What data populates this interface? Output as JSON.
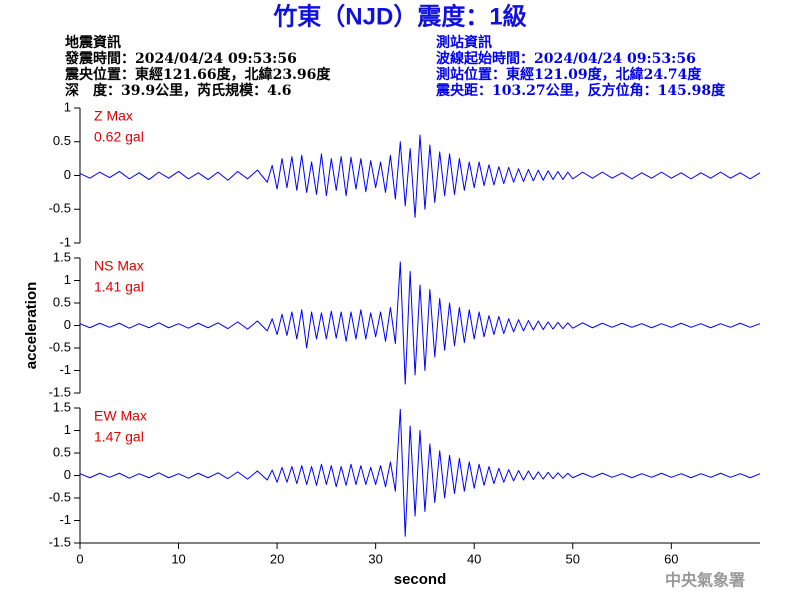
{
  "header": {
    "title": "竹東（NJD）震度：1級",
    "left": [
      "地震資訊",
      "發震時間：2024/04/24 09:53:56",
      "震央位置：東經121.66度，北緯23.96度",
      "深　度：39.9公里，芮氏規模：4.6"
    ],
    "right": [
      "測站資訊",
      "波線起始時間：2024/04/24 09:53:56",
      "測站位置：東經121.09度，北緯24.74度",
      "震央距：103.27公里，反方位角：145.98度"
    ]
  },
  "watermark": "中央氣象署",
  "chart_data": [
    {
      "type": "line",
      "annotation": [
        "Z Max",
        "0.62 gal"
      ],
      "color": "#0000ff",
      "annotation_color": "#e00000",
      "xlim": [
        0,
        69
      ],
      "ylim": [
        -1,
        1
      ],
      "yticks": [
        1,
        0.5,
        0,
        -0.5,
        -1
      ],
      "x": [
        0,
        1,
        2,
        3,
        4,
        5,
        6,
        7,
        8,
        9,
        10,
        11,
        12,
        13,
        14,
        15,
        16,
        17,
        18,
        19,
        19.5,
        20,
        20.5,
        21,
        21.5,
        22,
        22.5,
        23,
        23.5,
        24,
        24.5,
        25,
        25.5,
        26,
        26.5,
        27,
        27.5,
        28,
        28.5,
        29,
        29.5,
        30,
        30.5,
        31,
        31.5,
        32,
        32.5,
        33,
        33.5,
        34,
        34.5,
        35,
        35.5,
        36,
        36.5,
        37,
        37.5,
        38,
        38.5,
        39,
        39.5,
        40,
        40.5,
        41,
        41.5,
        42,
        42.5,
        43,
        43.5,
        44,
        44.5,
        45,
        45.5,
        46,
        46.5,
        47,
        47.5,
        48,
        48.5,
        49,
        49.5,
        50,
        51,
        52,
        53,
        54,
        55,
        56,
        57,
        58,
        59,
        60,
        61,
        62,
        63,
        64,
        65,
        66,
        67,
        68,
        69
      ],
      "values": [
        0.03,
        -0.04,
        0.05,
        -0.03,
        0.06,
        -0.05,
        0.04,
        -0.06,
        0.05,
        -0.04,
        0.06,
        -0.05,
        0.04,
        -0.06,
        0.05,
        -0.07,
        0.06,
        -0.05,
        0.08,
        -0.1,
        0.15,
        -0.2,
        0.25,
        -0.18,
        0.28,
        -0.22,
        0.3,
        -0.25,
        0.2,
        -0.28,
        0.32,
        -0.3,
        0.25,
        -0.22,
        0.28,
        -0.3,
        0.27,
        -0.2,
        0.25,
        -0.24,
        0.22,
        -0.18,
        0.2,
        -0.25,
        0.3,
        -0.35,
        0.5,
        -0.45,
        0.4,
        -0.62,
        0.6,
        -0.5,
        0.45,
        -0.4,
        0.35,
        -0.3,
        0.32,
        -0.28,
        0.25,
        -0.22,
        0.2,
        -0.18,
        0.2,
        -0.15,
        0.16,
        -0.14,
        0.13,
        -0.12,
        0.12,
        -0.1,
        0.1,
        -0.09,
        0.09,
        -0.08,
        0.08,
        -0.07,
        0.07,
        -0.06,
        0.06,
        -0.06,
        0.05,
        -0.05,
        0.05,
        -0.04,
        0.05,
        -0.04,
        0.04,
        -0.05,
        0.04,
        -0.04,
        0.05,
        -0.04,
        0.04,
        -0.05,
        0.04,
        -0.04,
        0.05,
        -0.04,
        0.04,
        -0.05,
        0.04
      ]
    },
    {
      "type": "line",
      "annotation": [
        "NS Max",
        "1.41 gal"
      ],
      "y_label": "acceleration",
      "color": "#0000ff",
      "annotation_color": "#e00000",
      "xlim": [
        0,
        69
      ],
      "ylim": [
        -1.5,
        1.5
      ],
      "yticks": [
        1.5,
        1,
        0.5,
        0,
        -0.5,
        -1,
        -1.5
      ],
      "x": [
        0,
        1,
        2,
        3,
        4,
        5,
        6,
        7,
        8,
        9,
        10,
        11,
        12,
        13,
        14,
        15,
        16,
        17,
        18,
        19,
        19.5,
        20,
        20.5,
        21,
        21.5,
        22,
        22.5,
        23,
        23.5,
        24,
        24.5,
        25,
        25.5,
        26,
        26.5,
        27,
        27.5,
        28,
        28.5,
        29,
        29.5,
        30,
        30.5,
        31,
        31.5,
        32,
        32.5,
        33,
        33.5,
        34,
        34.5,
        35,
        35.5,
        36,
        36.5,
        37,
        37.5,
        38,
        38.5,
        39,
        39.5,
        40,
        40.5,
        41,
        41.5,
        42,
        42.5,
        43,
        43.5,
        44,
        44.5,
        45,
        45.5,
        46,
        46.5,
        47,
        47.5,
        48,
        48.5,
        49,
        49.5,
        50,
        51,
        52,
        53,
        54,
        55,
        56,
        57,
        58,
        59,
        60,
        61,
        62,
        63,
        64,
        65,
        66,
        67,
        68,
        69
      ],
      "values": [
        0.04,
        -0.05,
        0.05,
        -0.04,
        0.05,
        -0.06,
        0.04,
        -0.05,
        0.06,
        -0.05,
        0.04,
        -0.06,
        0.05,
        -0.05,
        0.06,
        -0.07,
        0.08,
        -0.08,
        0.1,
        -0.12,
        0.15,
        -0.2,
        0.25,
        -0.22,
        0.3,
        -0.3,
        0.35,
        -0.5,
        0.3,
        -0.3,
        0.28,
        -0.3,
        0.32,
        -0.28,
        0.3,
        -0.35,
        0.3,
        -0.3,
        0.35,
        -0.3,
        0.28,
        -0.25,
        0.3,
        -0.35,
        0.4,
        -0.4,
        1.41,
        -1.3,
        1.2,
        -1.1,
        0.9,
        -1.0,
        0.8,
        -0.7,
        0.6,
        -0.55,
        0.5,
        -0.45,
        0.4,
        -0.38,
        0.35,
        -0.3,
        0.3,
        -0.25,
        0.22,
        -0.2,
        0.2,
        -0.18,
        0.15,
        -0.14,
        0.13,
        -0.12,
        0.11,
        -0.1,
        0.1,
        -0.09,
        0.08,
        -0.08,
        0.07,
        -0.07,
        0.06,
        -0.06,
        0.06,
        -0.05,
        0.05,
        -0.04,
        0.05,
        -0.04,
        0.04,
        -0.05,
        0.04,
        -0.04,
        0.05,
        -0.04,
        0.04,
        -0.05,
        0.04,
        -0.04,
        0.05,
        -0.04,
        0.04
      ]
    },
    {
      "type": "line",
      "annotation": [
        "EW Max",
        "1.47 gal"
      ],
      "x_label": "second",
      "color": "#0000ff",
      "annotation_color": "#e00000",
      "xlim": [
        0,
        69
      ],
      "xticks": [
        0,
        10,
        20,
        30,
        40,
        50,
        60
      ],
      "ylim": [
        -1.5,
        1.5
      ],
      "yticks": [
        1.5,
        1,
        0.5,
        0,
        -0.5,
        -1,
        -1.5
      ],
      "x": [
        0,
        1,
        2,
        3,
        4,
        5,
        6,
        7,
        8,
        9,
        10,
        11,
        12,
        13,
        14,
        15,
        16,
        17,
        18,
        19,
        19.5,
        20,
        20.5,
        21,
        21.5,
        22,
        22.5,
        23,
        23.5,
        24,
        24.5,
        25,
        25.5,
        26,
        26.5,
        27,
        27.5,
        28,
        28.5,
        29,
        29.5,
        30,
        30.5,
        31,
        31.5,
        32,
        32.5,
        33,
        33.5,
        34,
        34.5,
        35,
        35.5,
        36,
        36.5,
        37,
        37.5,
        38,
        38.5,
        39,
        39.5,
        40,
        40.5,
        41,
        41.5,
        42,
        42.5,
        43,
        43.5,
        44,
        44.5,
        45,
        45.5,
        46,
        46.5,
        47,
        47.5,
        48,
        48.5,
        49,
        49.5,
        50,
        51,
        52,
        53,
        54,
        55,
        56,
        57,
        58,
        59,
        60,
        61,
        62,
        63,
        64,
        65,
        66,
        67,
        68,
        69
      ],
      "values": [
        0.04,
        -0.05,
        0.05,
        -0.04,
        0.05,
        -0.06,
        0.04,
        -0.05,
        0.06,
        -0.05,
        0.04,
        -0.06,
        0.05,
        -0.05,
        0.06,
        -0.07,
        0.08,
        -0.08,
        0.1,
        -0.1,
        0.12,
        -0.15,
        0.18,
        -0.15,
        0.2,
        -0.18,
        0.22,
        -0.2,
        0.2,
        -0.22,
        0.25,
        -0.2,
        0.22,
        -0.25,
        0.2,
        -0.22,
        0.25,
        -0.2,
        0.22,
        -0.2,
        0.18,
        -0.2,
        0.22,
        -0.25,
        0.3,
        -0.35,
        1.47,
        -1.35,
        1.1,
        -0.9,
        1.0,
        -0.8,
        0.7,
        -0.6,
        0.55,
        -0.5,
        0.45,
        -0.4,
        0.38,
        -0.35,
        0.3,
        -0.28,
        0.25,
        -0.22,
        0.2,
        -0.18,
        0.16,
        -0.15,
        0.13,
        -0.12,
        0.11,
        -0.1,
        0.1,
        -0.09,
        0.08,
        -0.08,
        0.07,
        -0.07,
        0.06,
        -0.06,
        0.05,
        -0.05,
        0.05,
        -0.04,
        0.05,
        -0.04,
        0.04,
        -0.05,
        0.04,
        -0.04,
        0.05,
        -0.04,
        0.04,
        -0.05,
        0.04,
        -0.04,
        0.05,
        -0.04,
        0.04,
        -0.05,
        0.04
      ]
    }
  ]
}
